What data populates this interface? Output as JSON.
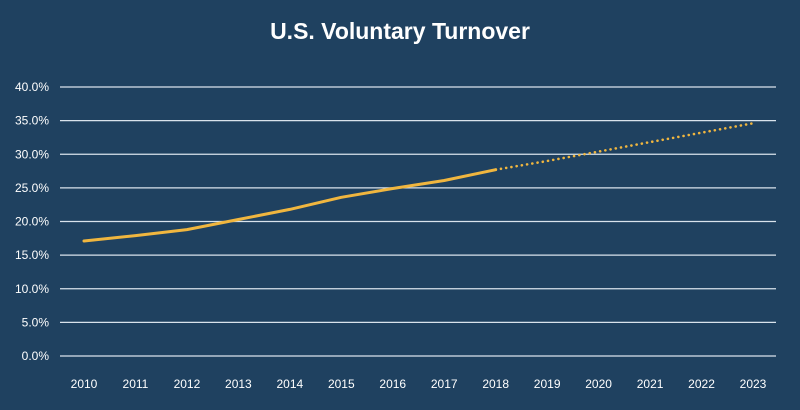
{
  "chart_data": {
    "type": "line",
    "title": "U.S. Voluntary Turnover",
    "xlabel": "",
    "ylabel": "",
    "x": [
      "2010",
      "2011",
      "2012",
      "2013",
      "2014",
      "2015",
      "2016",
      "2017",
      "2018",
      "2019",
      "2020",
      "2021",
      "2022",
      "2023"
    ],
    "ylim": [
      0,
      40
    ],
    "yticks": [
      "0.0%",
      "5.0%",
      "10.0%",
      "15.0%",
      "20.0%",
      "25.0%",
      "30.0%",
      "35.0%",
      "40.0%"
    ],
    "grid": true,
    "legend": "none",
    "series": [
      {
        "style": "solid",
        "color": "#f0b63f",
        "x": [
          "2010",
          "2011",
          "2012",
          "2013",
          "2014",
          "2015",
          "2016",
          "2017",
          "2018"
        ],
        "values": [
          17.1,
          17.9,
          18.8,
          20.3,
          21.8,
          23.6,
          24.9,
          26.1,
          27.7
        ]
      },
      {
        "style": "dotted",
        "color": "#f0b63f",
        "x": [
          "2018",
          "2019",
          "2020",
          "2021",
          "2022",
          "2023"
        ],
        "values": [
          27.7,
          29.0,
          30.4,
          31.8,
          33.2,
          34.6
        ]
      }
    ]
  }
}
